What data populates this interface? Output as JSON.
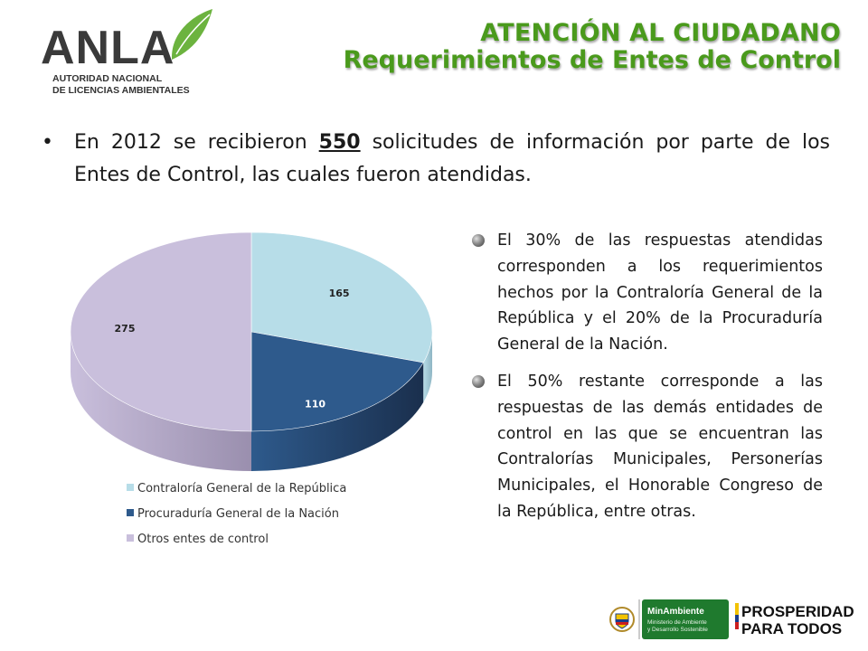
{
  "header": {
    "logo_text": "ANLA",
    "logo_sub1": "AUTORIDAD NACIONAL",
    "logo_sub2": "DE LICENCIAS AMBIENTALES",
    "title_line1": "ATENCIÓN AL CIUDADANO",
    "title_line2": "Requerimientos de Entes de Control"
  },
  "main_bullet": {
    "bullet": "•",
    "pre": "En 2012 se recibieron ",
    "highlight": "550",
    "post": " solicitudes de información por parte de los Entes de Control, las cuales fueron atendidas."
  },
  "side_points": [
    "El 30% de las respuestas atendidas corresponden a los requerimientos hechos por la Contraloría General de la República y el 20% de la Procuraduría General de la Nación.",
    "El 50% restante corresponde a las respuestas de las demás entidades de control en las que se encuentran las Contralorías Municipales, Personerías Municipales, el Honorable Congreso de la República, entre otras."
  ],
  "chart_data": {
    "type": "pie",
    "categories": [
      "Contraloría General de la República",
      "Procuraduría General de la Nación",
      "Otros entes de control"
    ],
    "values": [
      165,
      110,
      275
    ],
    "labels": [
      "165",
      "110",
      "275"
    ],
    "colors": [
      "#b7dde8",
      "#2e5a8c",
      "#c9bfdc"
    ],
    "side_colors": [
      "#8fb6c4",
      "#1a2f4d",
      "#9a8fae"
    ],
    "legend_position": "bottom",
    "title": ""
  },
  "footer": {
    "minambiente": "MinAmbiente",
    "minambiente_sub1": "Ministerio de Ambiente",
    "minambiente_sub2": "y Desarrollo Sostenible",
    "prosperidad_line1": "PROSPERIDAD",
    "prosperidad_line2": "PARA TODOS"
  }
}
